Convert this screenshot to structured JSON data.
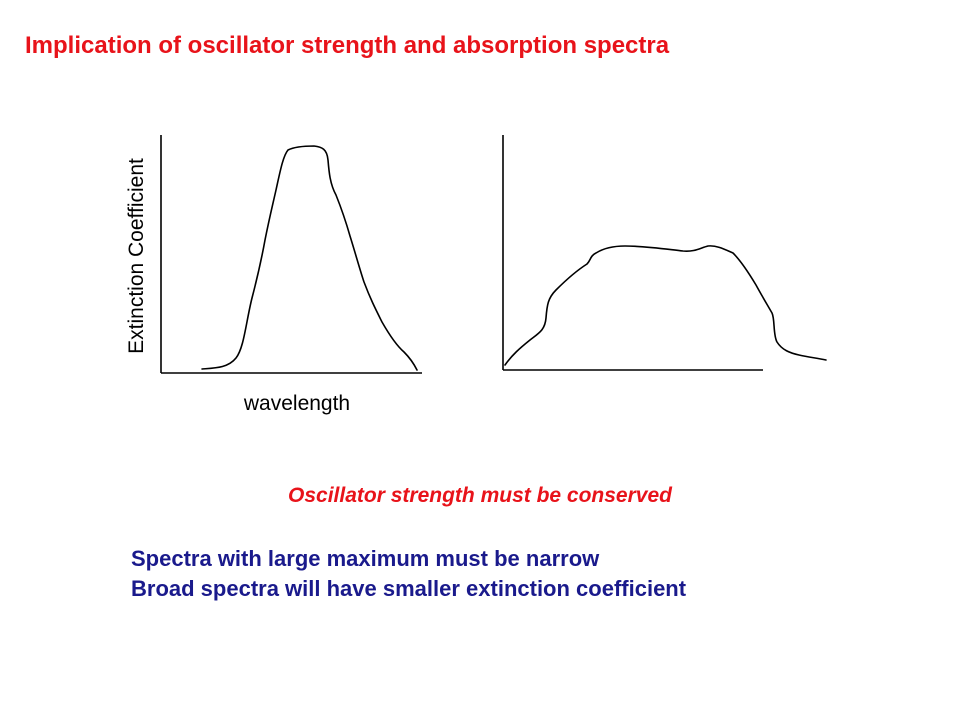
{
  "slide": {
    "title": "Implication of oscillator strength and absorption spectra",
    "conclusion": "Oscillator strength must be conserved",
    "points": [
      "Spectra with large maximum must be narrow",
      "Broad spectra will have smaller extinction coefficient"
    ]
  },
  "diagram": {
    "y_axis_label": "Extinction Coefficient",
    "x_axis_label": "wavelength",
    "curve_left": "narrow-tall-peak",
    "curve_right": "broad-flat-band"
  },
  "colors": {
    "title": "#e8131a",
    "conclusion": "#e8131a",
    "points": "#1a1a8c",
    "lines": "#000000"
  }
}
